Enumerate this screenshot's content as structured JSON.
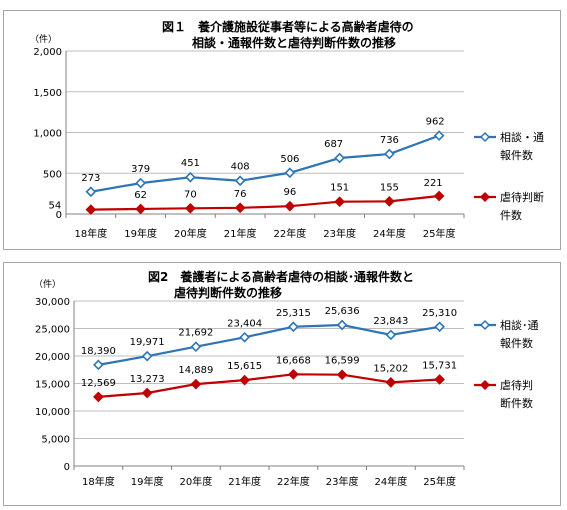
{
  "chart_data": [
    {
      "type": "line",
      "title": [
        "図１　養介護施設従事者等による高齢者虐待の",
        "相談・通報件数と虐待判断件数の推移"
      ],
      "unit_label": "（件）",
      "categories": [
        "18年度",
        "19年度",
        "20年度",
        "21年度",
        "22年度",
        "23年度",
        "24年度",
        "25年度"
      ],
      "ylim": [
        0,
        2000
      ],
      "yticks": [
        0,
        500,
        1000,
        1500,
        2000
      ],
      "ytick_labels": [
        "0",
        "500",
        "1,000",
        "1,500",
        "2,000"
      ],
      "grid": true,
      "legend_position": "right",
      "series": [
        {
          "name_lines": [
            "相談・通",
            "報件数"
          ],
          "color": "#2e75b6",
          "marker": "diamond-open",
          "values": [
            273,
            379,
            451,
            408,
            506,
            687,
            736,
            962
          ],
          "labels": [
            "273",
            "379",
            "451",
            "408",
            "506",
            "687",
            "736",
            "962"
          ]
        },
        {
          "name_lines": [
            "虐待判断",
            "件数"
          ],
          "color": "#c00000",
          "marker": "diamond",
          "values": [
            54,
            62,
            70,
            76,
            96,
            151,
            155,
            221
          ],
          "labels": [
            "54",
            "62",
            "70",
            "76",
            "96",
            "151",
            "155",
            "221"
          ]
        }
      ]
    },
    {
      "type": "line",
      "title": [
        "図2　養護者による高齢者虐待の相談･通報件数と",
        "虐待判断件数の推移"
      ],
      "unit_label": "（件）",
      "categories": [
        "18年度",
        "19年度",
        "20年度",
        "21年度",
        "22年度",
        "23年度",
        "24年度",
        "25年度"
      ],
      "ylim": [
        0,
        30000
      ],
      "yticks": [
        0,
        5000,
        10000,
        15000,
        20000,
        25000,
        30000
      ],
      "ytick_labels": [
        "0",
        "5,000",
        "10,000",
        "15,000",
        "20,000",
        "25,000",
        "30,000"
      ],
      "grid": true,
      "legend_position": "right",
      "series": [
        {
          "name_lines": [
            "相談･通",
            "報件数"
          ],
          "color": "#2e75b6",
          "marker": "diamond-open",
          "values": [
            18390,
            19971,
            21692,
            23404,
            25315,
            25636,
            23843,
            25310
          ],
          "labels": [
            "18,390",
            "19,971",
            "21,692",
            "23,404",
            "25,315",
            "25,636",
            "23,843",
            "25,310"
          ]
        },
        {
          "name_lines": [
            "虐待判",
            "断件数"
          ],
          "color": "#c00000",
          "marker": "diamond",
          "values": [
            12569,
            13273,
            14889,
            15615,
            16668,
            16599,
            15202,
            15731
          ],
          "labels": [
            "12,569",
            "13,273",
            "14,889",
            "15,615",
            "16,668",
            "16,599",
            "15,202",
            "15,731"
          ]
        }
      ]
    }
  ]
}
